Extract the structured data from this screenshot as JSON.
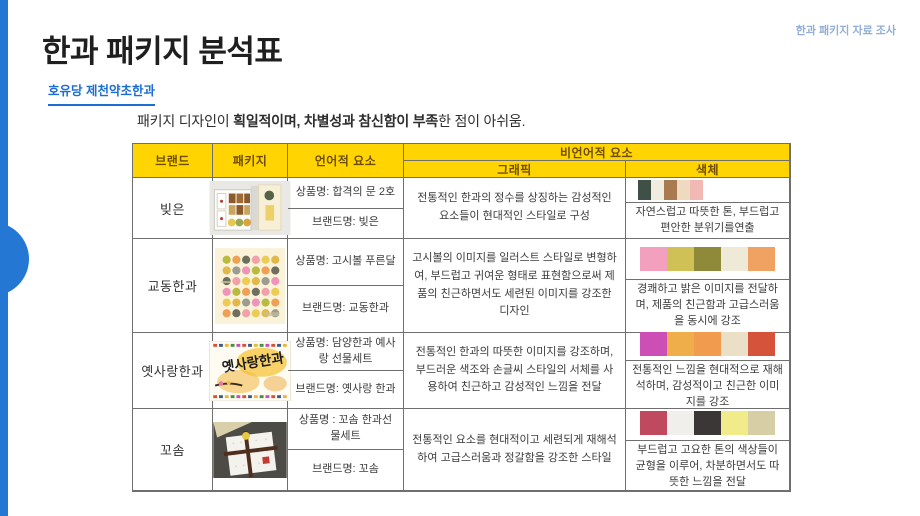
{
  "colors": {
    "accent_blue": "#2478d4",
    "subtitle_blue": "#1c6ed6",
    "corner_label_blue": "#93aed8",
    "header_yellow": "#ffd400",
    "header_text_brown": "#6e4e00"
  },
  "page": {
    "corner_label": "한과 패키지 자료 조사",
    "title": "한과 패키지 분석표",
    "subtitle": "호유당 제천약초한과",
    "intro_segments": [
      {
        "text": "패키지 디자인이 ",
        "bold": false
      },
      {
        "text": "획일적이며,",
        "bold": true
      },
      {
        "text": " ",
        "bold": false
      },
      {
        "text": "차별성과 참신함이 부족",
        "bold": true
      },
      {
        "text": "한 점이 아쉬움.",
        "bold": false
      }
    ]
  },
  "table": {
    "headers": {
      "brand": "브랜드",
      "package": "패키지",
      "linguistic": "언어적 요소",
      "nonverbal": "비언어적 요소",
      "graphic": "그래픽",
      "color": "색체"
    },
    "rows": [
      {
        "brand": "빚은",
        "package_image": "bizeun-gift-set-photo",
        "image_text": "",
        "product": "상품명: 합격의 문 2호",
        "brand_name": "브랜드명: 빚은",
        "graphic": "전통적인 한과의 정수를 상징하는 감성적인 요소들이 현대적인 스타일로 구성",
        "palette": [
          "#3f5147",
          "#f0ece0",
          "#a97a4f",
          "#eed9c1",
          "#f2b8b4"
        ],
        "color_desc": "자연스럽고 따뜻한 톤, 부드럽고 편안한 분위기를연출"
      },
      {
        "brand": "교동한과",
        "package_image": "gyodong-gosiball-dots-package",
        "image_text": "",
        "product": "상품명: 고시볼 푸른달",
        "brand_name": "브랜드명: 교동한과",
        "graphic": "고시볼의 이미지를 일러스트 스타일로 변형하여, 부드럽고 귀여운 형태로 표현함으로써 제품의 친근하면서도 세련된 이미지를 강조한 디자인",
        "palette": [
          "#f2a0bd",
          "#cfc155",
          "#8f8a39",
          "#efe9d7",
          "#f0a263"
        ],
        "color_desc": "경쾌하고 밝은 이미지를 전달하며, 제품의 친근함과 고급스러움을 동시에 강조"
      },
      {
        "brand": "옛사랑한과",
        "package_image": "yesarang-calligraphy-package",
        "image_text": "옛사랑한과",
        "product": "상품명: 담양한과 예사랑 선물세트",
        "brand_name": "브랜드명: 옛사랑 한과",
        "graphic": "전통적인 한과의 따뜻한 이미지를 강조하며, 부드러운 색조와 손글씨 스타일의 서체를 사용하여 친근하고 감성적인 느낌을 전달",
        "palette": [
          "#cb4fb4",
          "#efae49",
          "#f09b4e",
          "#ebdfc8",
          "#d5533a"
        ],
        "color_desc": "전통적인 느낌을 현대적으로 재해석하며, 감성적이고 친근한 이미지를 강조"
      },
      {
        "brand": "꼬솜",
        "package_image": "kkosom-wrapped-box-photo",
        "image_text": "",
        "product": "상품명 : 꼬솜 한과선물세트",
        "brand_name": "브랜드명: 꼬솜",
        "graphic": "전통적인 요소를 현대적이고 세련되게 재해석하여 고급스러움과 정갈함을 강조한 스타일",
        "palette": [
          "#bf4a60",
          "#f0efec",
          "#3a3736",
          "#f2eb89",
          "#d6cfa6"
        ],
        "color_desc": "부드럽고 고요한 톤의 색상들이 균형을 이루어, 차분하면서도 따뜻한 느낌을 전달"
      }
    ]
  }
}
